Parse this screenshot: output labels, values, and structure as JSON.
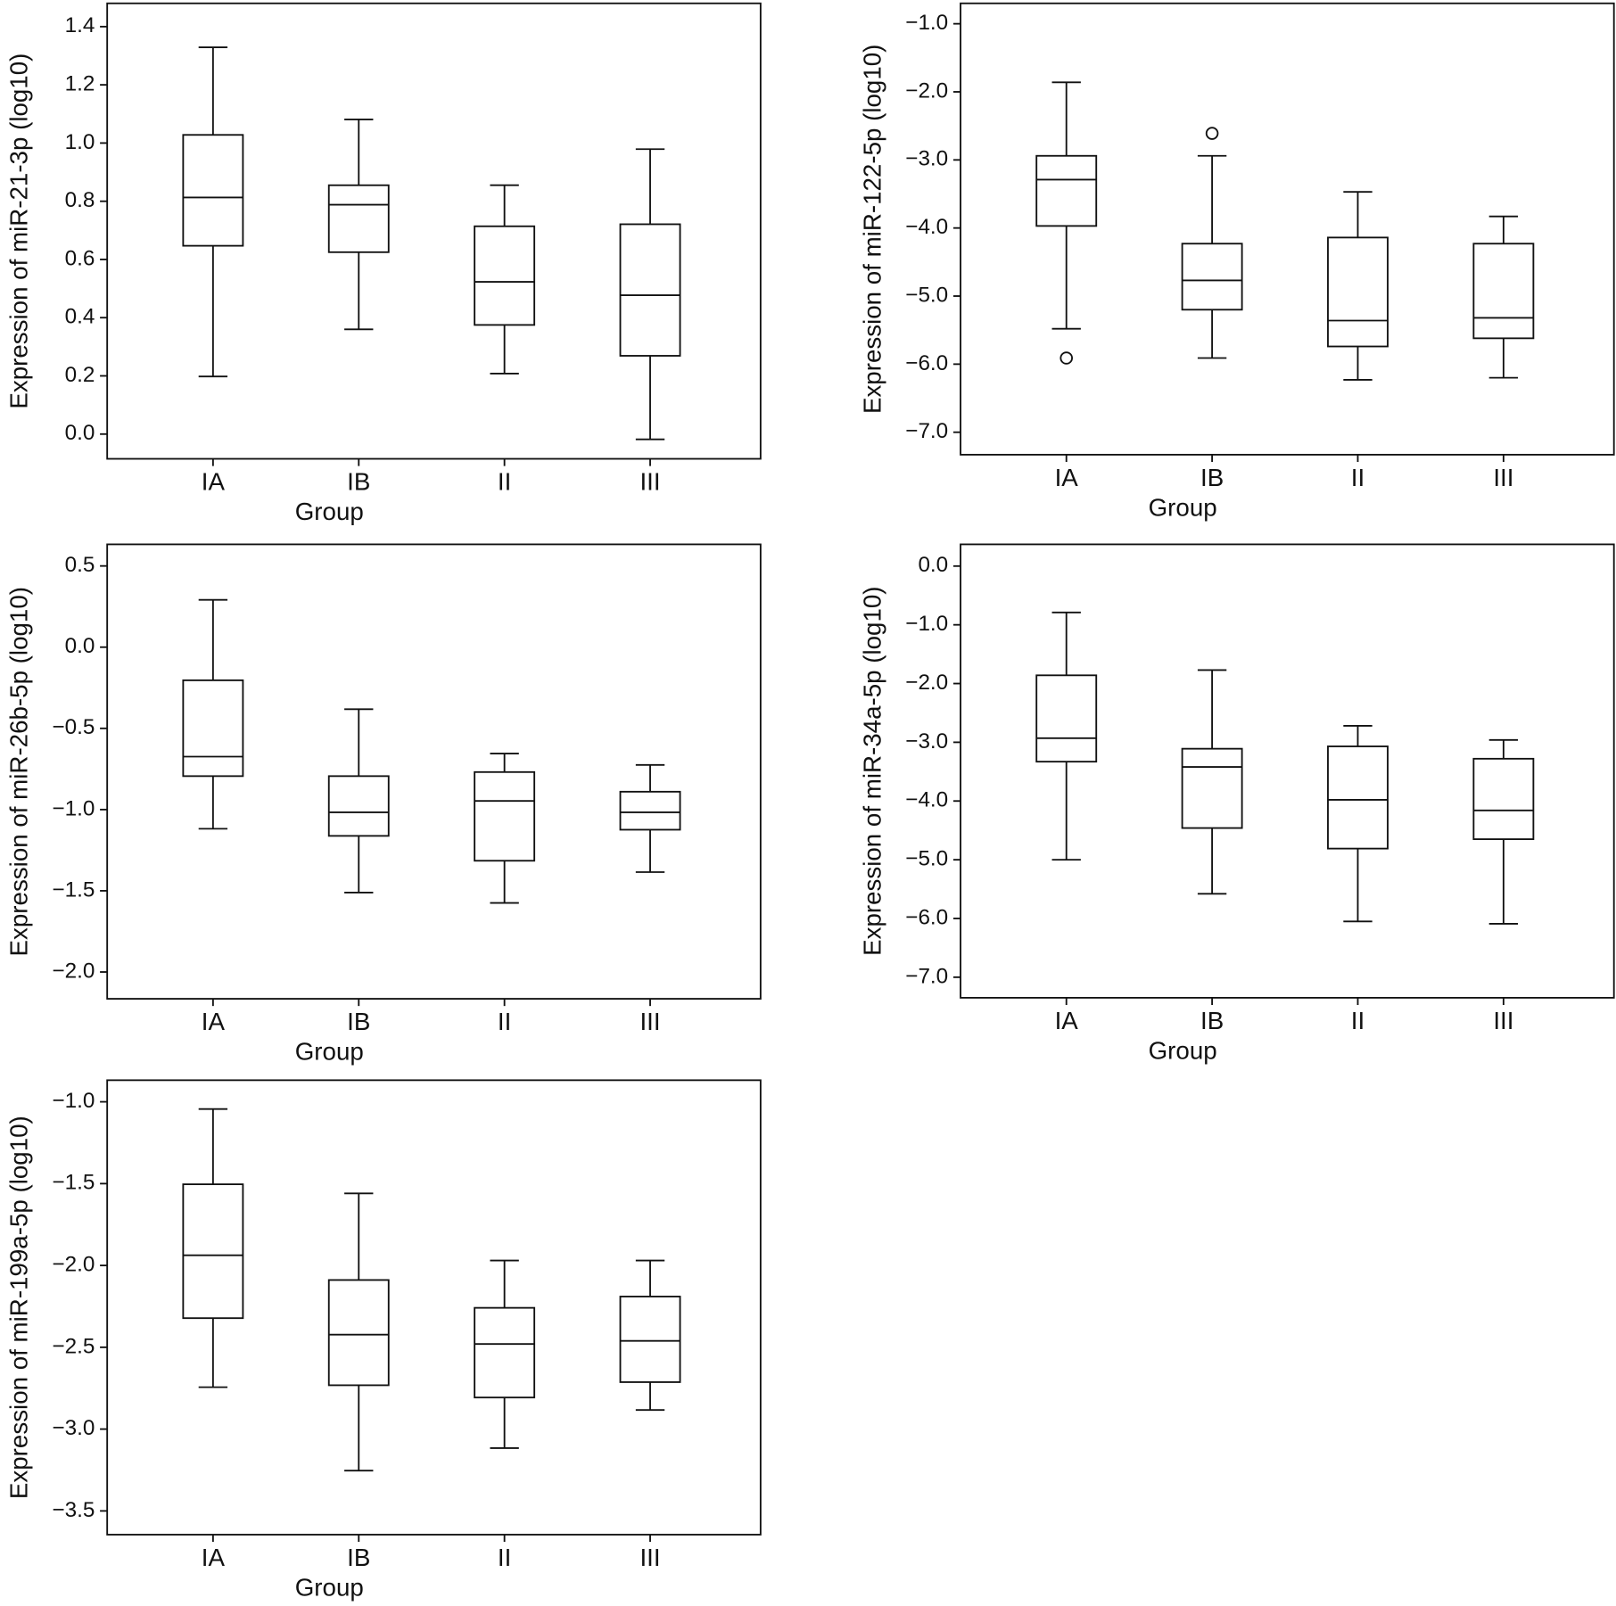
{
  "chart_data": [
    {
      "type": "box",
      "xlabel": "Group",
      "ylabel": "Expression of miR-21-3p (log10)",
      "categories": [
        "IA",
        "IB",
        "II",
        "III"
      ],
      "boxes": [
        {
          "low": 0.198,
          "q1": 0.647,
          "median": 0.813,
          "q3": 1.028,
          "high": 1.329
        },
        {
          "low": 0.36,
          "q1": 0.625,
          "median": 0.788,
          "q3": 0.855,
          "high": 1.081
        },
        {
          "low": 0.208,
          "q1": 0.375,
          "median": 0.523,
          "q3": 0.714,
          "high": 0.855
        },
        {
          "low": -0.018,
          "q1": 0.269,
          "median": 0.477,
          "q3": 0.721,
          "high": 0.979
        }
      ],
      "ylim": [
        -0.085,
        1.48
      ],
      "yticks": [
        {
          "value": 0,
          "label": "0.0"
        },
        0.2,
        0.4,
        0.6,
        0.8,
        {
          "value": 1,
          "label": "1.0"
        },
        1.2,
        1.4
      ]
    },
    {
      "type": "box",
      "xlabel": "Group",
      "ylabel": "Expression of miR-122-5p (log10)",
      "categories": [
        "IA",
        "IB",
        "II",
        "III"
      ],
      "boxes": [
        {
          "low": -5.48,
          "q1": -3.97,
          "median": -3.29,
          "q3": -2.94,
          "high": -1.86,
          "outliers": [
            -5.91
          ]
        },
        {
          "low": -5.91,
          "q1": -5.2,
          "median": -4.77,
          "q3": -4.23,
          "high": -2.94,
          "outliers": [
            -2.61
          ]
        },
        {
          "low": -6.23,
          "q1": -5.74,
          "median": -5.36,
          "q3": -4.14,
          "high": -3.47
        },
        {
          "low": -6.2,
          "q1": -5.62,
          "median": -5.32,
          "q3": -4.23,
          "high": -3.83
        }
      ],
      "ylim": [
        -7.33,
        -0.7
      ],
      "yticks": [
        {
          "value": -7,
          "label": "−7.0"
        },
        {
          "value": -6,
          "label": "−6.0"
        },
        {
          "value": -5,
          "label": "−5.0"
        },
        {
          "value": -4,
          "label": "−4.0"
        },
        {
          "value": -3,
          "label": "−3.0"
        },
        {
          "value": -2,
          "label": "−2.0"
        },
        {
          "value": -1,
          "label": "−1.0"
        }
      ]
    },
    {
      "type": "box",
      "xlabel": "Group",
      "ylabel": "Expression of miR-26b-5p (log10)",
      "categories": [
        "IA",
        "IB",
        "II",
        "III"
      ],
      "boxes": [
        {
          "low": -1.118,
          "q1": -0.794,
          "median": -0.674,
          "q3": -0.204,
          "high": 0.291
        },
        {
          "low": -1.511,
          "q1": -1.162,
          "median": -1.017,
          "q3": -0.794,
          "high": -0.382
        },
        {
          "low": -1.575,
          "q1": -1.315,
          "median": -0.947,
          "q3": -0.769,
          "high": -0.655
        },
        {
          "low": -1.385,
          "q1": -1.124,
          "median": -1.017,
          "q3": -0.89,
          "high": -0.725
        }
      ],
      "ylim": [
        -2.165,
        0.633
      ],
      "yticks": [
        {
          "value": -2,
          "label": "−2.0"
        },
        {
          "value": -1.5,
          "label": "−1.5"
        },
        {
          "value": -1,
          "label": "−1.0"
        },
        {
          "value": -0.5,
          "label": "−0.5"
        },
        {
          "value": 0,
          "label": "0.0"
        },
        0.5
      ]
    },
    {
      "type": "box",
      "xlabel": "Group",
      "ylabel": "Expression of miR-34a-5p (log10)",
      "categories": [
        "IA",
        "IB",
        "II",
        "III"
      ],
      "boxes": [
        {
          "low": -5.0,
          "q1": -3.33,
          "median": -2.93,
          "q3": -1.86,
          "high": -0.79
        },
        {
          "low": -5.58,
          "q1": -4.46,
          "median": -3.42,
          "q3": -3.11,
          "high": -1.77
        },
        {
          "low": -6.05,
          "q1": -4.81,
          "median": -3.98,
          "q3": -3.07,
          "high": -2.72
        },
        {
          "low": -6.09,
          "q1": -4.65,
          "median": -4.16,
          "q3": -3.28,
          "high": -2.96
        }
      ],
      "ylim": [
        -7.35,
        0.37
      ],
      "yticks": [
        {
          "value": -7,
          "label": "−7.0"
        },
        {
          "value": -6,
          "label": "−6.0"
        },
        {
          "value": -5,
          "label": "−5.0"
        },
        {
          "value": -4,
          "label": "−4.0"
        },
        {
          "value": -3,
          "label": "−3.0"
        },
        {
          "value": -2,
          "label": "−2.0"
        },
        {
          "value": -1,
          "label": "−1.0"
        },
        {
          "value": 0,
          "label": "0.0"
        }
      ]
    },
    {
      "type": "box",
      "xlabel": "Group",
      "ylabel": "Expression of miR-199a-5p (log10)",
      "categories": [
        "IA",
        "IB",
        "II",
        "III"
      ],
      "boxes": [
        {
          "low": -2.744,
          "q1": -2.322,
          "median": -1.938,
          "q3": -1.504,
          "high": -1.044
        },
        {
          "low": -3.254,
          "q1": -2.732,
          "median": -2.423,
          "q3": -2.089,
          "high": -1.56
        },
        {
          "low": -3.116,
          "q1": -2.807,
          "median": -2.48,
          "q3": -2.259,
          "high": -1.97
        },
        {
          "low": -2.883,
          "q1": -2.713,
          "median": -2.461,
          "q3": -2.19,
          "high": -1.97
        }
      ],
      "ylim": [
        -3.645,
        -0.868
      ],
      "yticks": [
        {
          "value": -3.5,
          "label": "−3.5"
        },
        {
          "value": -3,
          "label": "−3.0"
        },
        {
          "value": -2.5,
          "label": "−2.5"
        },
        {
          "value": -2,
          "label": "−2.0"
        },
        {
          "value": -1.5,
          "label": "−1.5"
        },
        {
          "value": -1,
          "label": "−1.0"
        }
      ]
    }
  ]
}
